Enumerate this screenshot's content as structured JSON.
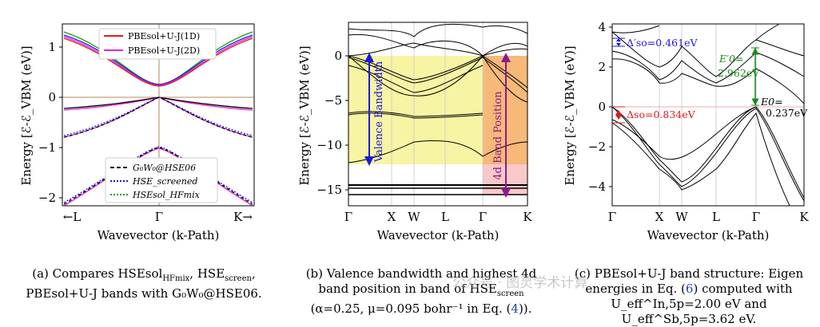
{
  "figure": {
    "panel_a": {
      "ylabel": "Energy [ℰ-ℰ_VBM (eV)]",
      "xlabel": "Wavevector (k-Path)",
      "y_ticks": [
        "1",
        "0",
        "−1",
        "−2"
      ],
      "x_ticks": [
        "←L",
        "Γ",
        "K→"
      ],
      "legend_top": [
        "PBEsol+U-J(1D)",
        "PBEsol+U-J(2D)"
      ],
      "legend_bottom": [
        "G₀W₀@HSE06",
        "HSE_screened",
        "HSEsol_HFmix"
      ],
      "colors": {
        "pbe1d": "#e41a1c",
        "pbe2d": "#e023e0",
        "gw": "#000000",
        "hse": "#1a1adc",
        "hsesol": "#1a9a1a",
        "axis_gamma": "#b58a5a"
      }
    },
    "panel_b": {
      "ylabel": "Energy [ℰ-ℰ_VBM (eV)]",
      "xlabel": "Wavevector (k-Path)",
      "y_ticks": [
        "0",
        "−5",
        "−10",
        "−15"
      ],
      "x_ticks": [
        "Γ",
        "X",
        "W",
        "L",
        "Γ",
        "K"
      ],
      "valence_label": "Valence Bandwidth",
      "band4d_label": "4d Band Position",
      "colors": {
        "valence_fill": "#f7f4a3",
        "band4d_fill": "#f6b978",
        "low_fill": "#f9c9c9",
        "valence_arrow": "#1a1adc",
        "band4d_arrow": "#8b1a8b"
      }
    },
    "panel_c": {
      "ylabel": "Energy [ℰ-ℰ_VBM (eV)]",
      "xlabel": "Wavevector (k-Path)",
      "y_ticks": [
        "4",
        "2",
        "0",
        "−2",
        "−4"
      ],
      "x_ticks": [
        "Γ",
        "X",
        "W",
        "L",
        "Γ",
        "K"
      ],
      "delta_so_prime": "Δ′so=0.461eV",
      "delta_so": "Δso=0.834eV",
      "e0_prime_label": "E′0=",
      "e0_prime_value": "2.962eV",
      "e0_label": "E0=",
      "e0_value": "0.237eV",
      "colors": {
        "blue": "#1a1adc",
        "green": "#1a8a1a",
        "red": "#e01a1a"
      }
    }
  },
  "captions": {
    "a": {
      "line1": "(a) Compares HSEsol",
      "line1_sub": "HFmix",
      "line1_b": ", HSE",
      "line1_sub2": "screen",
      "line1_c": ",",
      "line2": "PBEsol+U-J bands with G₀W₀@HSE06."
    },
    "b": {
      "line1": "(b) Valence bandwidth and highest 4d",
      "line2": "band position in band of HSE",
      "line2_sub": "screen",
      "line3": "(α=0.25, μ=0.095 bohr⁻¹ in Eq. (",
      "line3_ref": "4",
      "line3_end": "))."
    },
    "c": {
      "line1": "(c) PBEsol+U-J band structure: Eigen",
      "line2": "energies in Eq. (",
      "line2_ref": "6",
      "line2_end": ") computed with",
      "line3": "U_eff^In,5p=2.00 eV and U_eff^Sb,5p=3.62 eV."
    }
  },
  "watermark": "公众号 · 图灵学术计算"
}
